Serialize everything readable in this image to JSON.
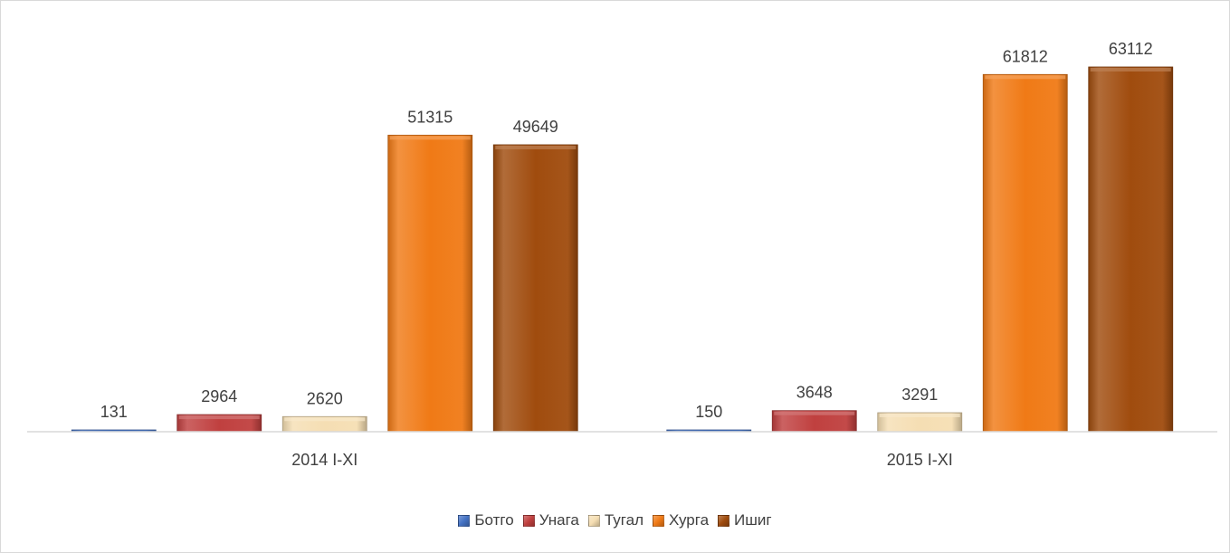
{
  "chart_data": {
    "type": "bar",
    "categories": [
      "2014 I-XI",
      "2015 I-XI"
    ],
    "series": [
      {
        "name": "Ботго",
        "values": [
          131,
          150
        ],
        "color": "#4472c4"
      },
      {
        "name": "Унага",
        "values": [
          2964,
          3648
        ],
        "color": "#c0403f"
      },
      {
        "name": "Тугал",
        "values": [
          2620,
          3291
        ],
        "color": "#f5deb3"
      },
      {
        "name": "Хурга",
        "values": [
          51315,
          61812
        ],
        "color": "#f07a16"
      },
      {
        "name": "Ишиг",
        "values": [
          49649,
          63112
        ],
        "color": "#a04c0e"
      }
    ],
    "ylim": [
      0,
      70000
    ],
    "grid": false,
    "legend_position": "bottom",
    "data_labels": true
  }
}
